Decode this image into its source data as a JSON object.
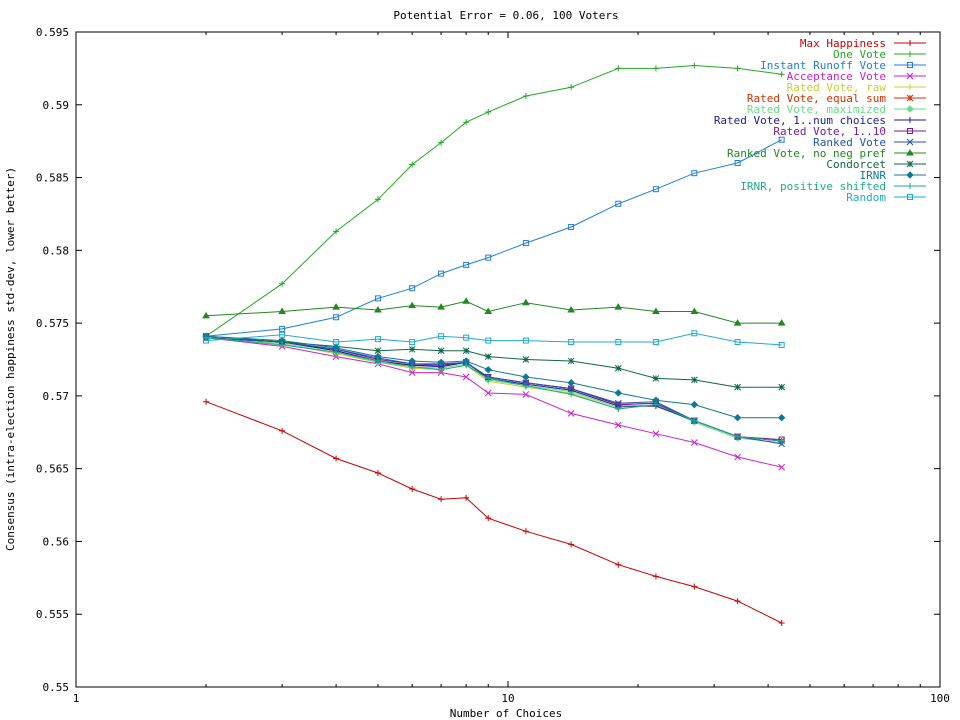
{
  "chart_data": {
    "type": "line",
    "title": "Potential Error = 0.06, 100 Voters",
    "xlabel": "Number of Choices",
    "ylabel": "Consensus (intra-election happiness std-dev, lower better)",
    "x_scale": "log",
    "xlim": [
      1,
      100
    ],
    "ylim": [
      0.55,
      0.595
    ],
    "x_ticks": [
      1,
      10,
      100
    ],
    "x_tick_labels": [
      "1",
      "10",
      "100"
    ],
    "y_ticks": [
      0.55,
      0.555,
      0.56,
      0.565,
      0.57,
      0.575,
      0.58,
      0.585,
      0.59,
      0.595
    ],
    "y_tick_labels": [
      "0.55",
      "0.555",
      "0.56",
      "0.565",
      "0.57",
      "0.575",
      "0.58",
      "0.585",
      "0.59",
      "0.595"
    ],
    "grid": false,
    "legend_position": "top-right",
    "x": [
      2,
      3,
      4,
      5,
      6,
      7,
      8,
      9,
      11,
      14,
      18,
      22,
      27,
      34,
      43
    ],
    "series": [
      {
        "name": "Max Happiness",
        "color": "#cc0000",
        "marker": "plus",
        "values": [
          0.5696,
          0.5676,
          0.5657,
          0.5647,
          0.5636,
          0.5629,
          0.563,
          0.5616,
          0.5607,
          0.5598,
          0.5584,
          0.5576,
          0.5569,
          0.5559,
          0.5544
        ]
      },
      {
        "name": "One Vote",
        "color": "#22aa22",
        "marker": "plus",
        "values": [
          0.5741,
          0.5777,
          0.5813,
          0.5835,
          0.5859,
          0.5874,
          0.5888,
          0.5895,
          0.5906,
          0.5912,
          0.5925,
          0.5925,
          0.5927,
          0.5925,
          0.5921
        ]
      },
      {
        "name": "Instant Runoff Vote",
        "color": "#1f7fd8",
        "marker": "square",
        "values": [
          0.5741,
          0.5746,
          0.5754,
          0.5767,
          0.5774,
          0.5784,
          0.579,
          0.5795,
          0.5805,
          0.5816,
          0.5832,
          0.5842,
          0.5853,
          0.586,
          0.5876
        ]
      },
      {
        "name": "Acceptance Vote",
        "color": "#cc22cc",
        "marker": "cross",
        "values": [
          0.574,
          0.5734,
          0.5727,
          0.5722,
          0.5716,
          0.5716,
          0.5713,
          0.5702,
          0.5701,
          0.5688,
          0.568,
          0.5674,
          0.5668,
          0.5658,
          0.5651
        ]
      },
      {
        "name": "Rated Vote, raw",
        "color": "#cccc33",
        "marker": "plus",
        "values": [
          0.574,
          0.5736,
          0.5729,
          0.5723,
          0.5719,
          0.5718,
          0.5721,
          0.571,
          0.5706,
          0.5702,
          0.5691,
          0.5694,
          0.5683,
          0.5672,
          0.5669
        ]
      },
      {
        "name": "Rated Vote, equal sum",
        "color": "#cc3300",
        "marker": "star",
        "values": [
          0.574,
          0.5737,
          0.5731,
          0.5724,
          0.5721,
          0.5721,
          0.5723,
          0.5713,
          0.5709,
          0.5705,
          0.5694,
          0.5695,
          0.5683,
          0.5672,
          0.5669
        ]
      },
      {
        "name": "Rated Vote, maximized",
        "color": "#66dd88",
        "marker": "diamond",
        "values": [
          0.574,
          0.5736,
          0.573,
          0.5723,
          0.572,
          0.5719,
          0.5722,
          0.5711,
          0.5707,
          0.5703,
          0.5692,
          0.5694,
          0.5682,
          0.5671,
          0.5668
        ]
      },
      {
        "name": "Rated Vote, 1..num choices",
        "color": "#1a1a99",
        "marker": "plus",
        "values": [
          0.574,
          0.5737,
          0.5731,
          0.5724,
          0.5721,
          0.572,
          0.5723,
          0.5712,
          0.5708,
          0.5704,
          0.5693,
          0.5693,
          0.5683,
          0.5672,
          0.5669
        ]
      },
      {
        "name": "Rated Vote, 1..10",
        "color": "#7a1a99",
        "marker": "square",
        "values": [
          0.574,
          0.5737,
          0.5732,
          0.5725,
          0.5722,
          0.5721,
          0.5723,
          0.5713,
          0.5709,
          0.5705,
          0.5694,
          0.5695,
          0.5683,
          0.5672,
          0.567
        ]
      },
      {
        "name": "Ranked Vote",
        "color": "#2255aa",
        "marker": "cross",
        "values": [
          0.574,
          0.5737,
          0.5732,
          0.5726,
          0.5722,
          0.5722,
          0.5723,
          0.5713,
          0.5709,
          0.5705,
          0.5695,
          0.5696,
          0.5683,
          0.5672,
          0.5667
        ]
      },
      {
        "name": "Ranked Vote, no neg pref",
        "color": "#228822",
        "marker": "triangle",
        "values": [
          0.5755,
          0.5758,
          0.5761,
          0.5759,
          0.5762,
          0.5761,
          0.5765,
          0.5758,
          0.5764,
          0.5759,
          0.5761,
          0.5758,
          0.5758,
          0.575,
          0.575
        ]
      },
      {
        "name": "Condorcet",
        "color": "#116644",
        "marker": "star",
        "values": [
          0.5741,
          0.5737,
          0.5734,
          0.5731,
          0.5732,
          0.5731,
          0.5731,
          0.5727,
          0.5725,
          0.5724,
          0.5719,
          0.5712,
          0.5711,
          0.5706,
          0.5706
        ]
      },
      {
        "name": "IRNR",
        "color": "#117799",
        "marker": "diamond",
        "values": [
          0.5741,
          0.5738,
          0.5733,
          0.5727,
          0.5724,
          0.5723,
          0.5724,
          0.5718,
          0.5713,
          0.5709,
          0.5702,
          0.5697,
          0.5694,
          0.5685,
          0.5685
        ]
      },
      {
        "name": "IRNR, positive shifted",
        "color": "#22aa88",
        "marker": "plus",
        "values": [
          0.574,
          0.5735,
          0.573,
          0.5724,
          0.572,
          0.5718,
          0.5721,
          0.5712,
          0.5707,
          0.5701,
          0.5691,
          0.5694,
          0.5683,
          0.5672,
          0.5669
        ]
      },
      {
        "name": "Random",
        "color": "#22aacc",
        "marker": "square",
        "values": [
          0.5738,
          0.5742,
          0.5737,
          0.5739,
          0.5737,
          0.5741,
          0.574,
          0.5738,
          0.5738,
          0.5737,
          0.5737,
          0.5737,
          0.5743,
          0.5737,
          0.5735
        ]
      }
    ]
  }
}
